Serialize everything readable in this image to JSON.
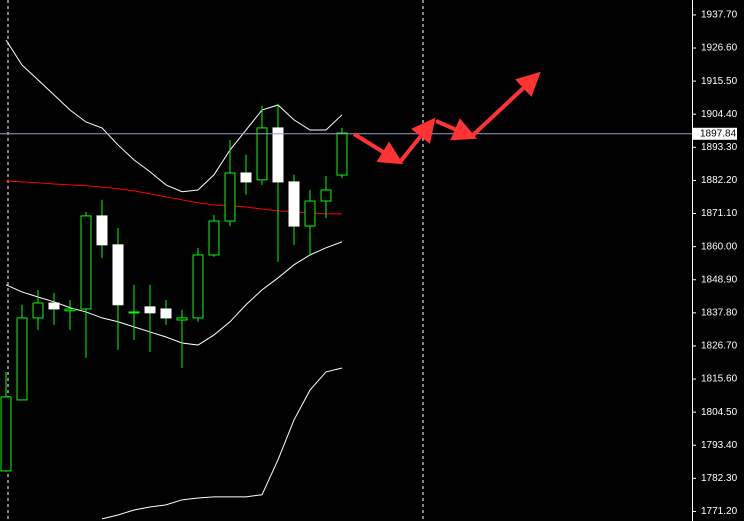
{
  "chart_data": {
    "type": "candlestick",
    "open": [
      1784.8,
      1808.6,
      1836.1,
      1841.1,
      1838.5,
      1839.1,
      1870.3,
      1860.6,
      1837.8,
      1839.8,
      1839.1,
      1835.4,
      1836.1,
      1857.2,
      1868.6,
      1884.7,
      1882.4,
      1899.8,
      1881.7,
      1866.9,
      1875.3,
      1884.0
    ],
    "high": [
      1818.0,
      1840.5,
      1845.5,
      1844.5,
      1842.1,
      1871.6,
      1875.7,
      1866.3,
      1847.2,
      1847.2,
      1842.1,
      1838.8,
      1859.6,
      1870.6,
      1895.8,
      1890.8,
      1907.2,
      1907.9,
      1884.1,
      1879.0,
      1883.7,
      1899.8
    ],
    "low": [
      1784.5,
      1808.6,
      1832.1,
      1833.8,
      1832.1,
      1822.7,
      1856.2,
      1825.4,
      1828.7,
      1824.7,
      1833.8,
      1819.3,
      1834.8,
      1856.6,
      1866.9,
      1877.4,
      1880.7,
      1854.9,
      1860.6,
      1857.2,
      1869.6,
      1883.0
    ],
    "close": [
      1809.6,
      1836.1,
      1841.1,
      1839.1,
      1839.1,
      1870.3,
      1860.6,
      1840.5,
      1838.1,
      1837.8,
      1836.1,
      1836.1,
      1857.2,
      1868.6,
      1884.7,
      1881.7,
      1899.8,
      1881.7,
      1866.9,
      1875.3,
      1879.0,
      1898.1
    ],
    "up_color": "#00ff00",
    "down_color": "#ffffff",
    "wick_color": "#00ff00",
    "series": [
      {
        "color": "#ffffff",
        "values": [
          1929.3,
          1920.9,
          1915.9,
          1910.9,
          1905.8,
          1901.8,
          1899.8,
          1894.1,
          1889.1,
          1885.1,
          1880.7,
          1878.4,
          1879.0,
          1884.1,
          1892.4,
          1899.1,
          1905.8,
          1907.5,
          1902.5,
          1899.1,
          1899.1,
          1904.2
        ]
      },
      {
        "color": "#ffffff",
        "values": [
          1847.2,
          1844.8,
          1843.1,
          1841.5,
          1839.5,
          1838.1,
          1836.1,
          1834.8,
          1833.1,
          1831.4,
          1829.7,
          1827.7,
          1827.0,
          1830.4,
          1834.8,
          1840.5,
          1845.5,
          1849.5,
          1853.9,
          1857.2,
          1859.6,
          1861.6
        ]
      },
      {
        "color": "#ffffff",
        "values": [
          null,
          null,
          null,
          null,
          null,
          null,
          1768.7,
          1770.0,
          1771.7,
          1772.7,
          1773.4,
          1775.1,
          1775.7,
          1776.1,
          1776.1,
          1776.1,
          1776.8,
          1788.5,
          1801.9,
          1811.9,
          1818.0,
          1819.3
        ]
      },
      {
        "color": "#ff0000",
        "values": [
          1882.0,
          1881.7,
          1881.4,
          1881.0,
          1880.7,
          1880.4,
          1880.0,
          1879.4,
          1878.7,
          1877.7,
          1876.7,
          1875.7,
          1874.7,
          1874.0,
          1873.7,
          1873.3,
          1872.6,
          1872.0,
          1871.6,
          1871.3,
          1871.0,
          1871.0
        ]
      }
    ],
    "current_price": 1897.84,
    "current_price_color": "#8fa0c8",
    "ylim": [
      1768.0,
      1942.7
    ],
    "yticks": [
      {
        "value": 1937.7,
        "label": "1937.70"
      },
      {
        "value": 1926.6,
        "label": "1926.60"
      },
      {
        "value": 1915.5,
        "label": "1915.50"
      },
      {
        "value": 1904.4,
        "label": "1904.40"
      },
      {
        "value": 1893.3,
        "label": "1893.30"
      },
      {
        "value": 1882.2,
        "label": "1882.20"
      },
      {
        "value": 1871.1,
        "label": "1871.10"
      },
      {
        "value": 1860.0,
        "label": "1860.00"
      },
      {
        "value": 1848.9,
        "label": "1848.90"
      },
      {
        "value": 1837.8,
        "label": "1837.80"
      },
      {
        "value": 1826.7,
        "label": "1826.70"
      },
      {
        "value": 1815.6,
        "label": "1815.60"
      },
      {
        "value": 1804.5,
        "label": "1804.50"
      },
      {
        "value": 1793.4,
        "label": "1793.40"
      },
      {
        "value": 1782.3,
        "label": "1782.30"
      },
      {
        "value": 1771.2,
        "label": "1771.20"
      }
    ]
  }
}
